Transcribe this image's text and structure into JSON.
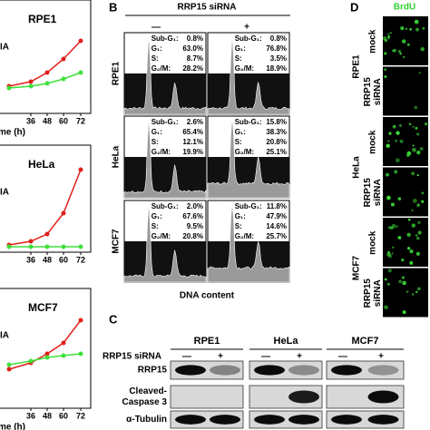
{
  "panel_a": {
    "charts": [
      {
        "label": "RPE1",
        "legend": "IA",
        "xticks": [
          "36",
          "48",
          "60",
          "72"
        ],
        "xlabel": "me (h)"
      },
      {
        "label": "HeLa",
        "legend": "IA",
        "xticks": [
          "36",
          "48",
          "60",
          "72"
        ]
      },
      {
        "label": "MCF7",
        "legend": "IA",
        "xticks": [
          "36",
          "48",
          "60",
          "72"
        ],
        "xlabel": "me (h)"
      }
    ]
  },
  "panel_b": {
    "letter": "B",
    "treatment": "RRP15 siRNA",
    "conditions": [
      "—",
      "+"
    ],
    "stat_labels": [
      "Sub-G₁:",
      "G₁:",
      "S:",
      "G₂/M:"
    ],
    "xlabel": "DNA content",
    "rows": [
      {
        "label": "RPE1",
        "cells": [
          [
            "0.8%",
            "63.0%",
            "8.7%",
            "28.2%"
          ],
          [
            "0.8%",
            "76.8%",
            "3.5%",
            "18.9%"
          ]
        ]
      },
      {
        "label": "HeLa",
        "cells": [
          [
            "2.6%",
            "65.4%",
            "12.1%",
            "19.9%"
          ],
          [
            "15.8%",
            "38.3%",
            "20.8%",
            "25.1%"
          ]
        ]
      },
      {
        "label": "MCF7",
        "cells": [
          [
            "2.0%",
            "67.6%",
            "9.5%",
            "20.8%"
          ],
          [
            "11.8%",
            "47.9%",
            "14.6%",
            "25.7%"
          ]
        ]
      }
    ]
  },
  "panel_c": {
    "letter": "C",
    "columns": [
      "RPE1",
      "HeLa",
      "MCF7"
    ],
    "treatment": "RRP15 siRNA",
    "conditions": [
      "—",
      "+"
    ],
    "rows": [
      {
        "lines": [
          "RRP15"
        ]
      },
      {
        "lines": [
          "Cleaved-",
          "Caspase 3"
        ]
      },
      {
        "lines": [
          "α-Tubulin"
        ]
      }
    ]
  },
  "panel_d": {
    "letter": "D",
    "stain": "BrdU",
    "groups": [
      {
        "label": "RPE1",
        "rows": [
          {
            "lines": [
              "mock"
            ]
          },
          {
            "lines": [
              "RRP15",
              "siRNA"
            ]
          }
        ]
      },
      {
        "label": "HeLa",
        "rows": [
          {
            "lines": [
              "mock"
            ]
          },
          {
            "lines": [
              "RRP15",
              "siRNA"
            ]
          }
        ]
      },
      {
        "label": "MCF7",
        "rows": [
          {
            "lines": [
              "mock"
            ]
          },
          {
            "lines": [
              "RRP15",
              "siRNA"
            ]
          }
        ]
      }
    ]
  }
}
